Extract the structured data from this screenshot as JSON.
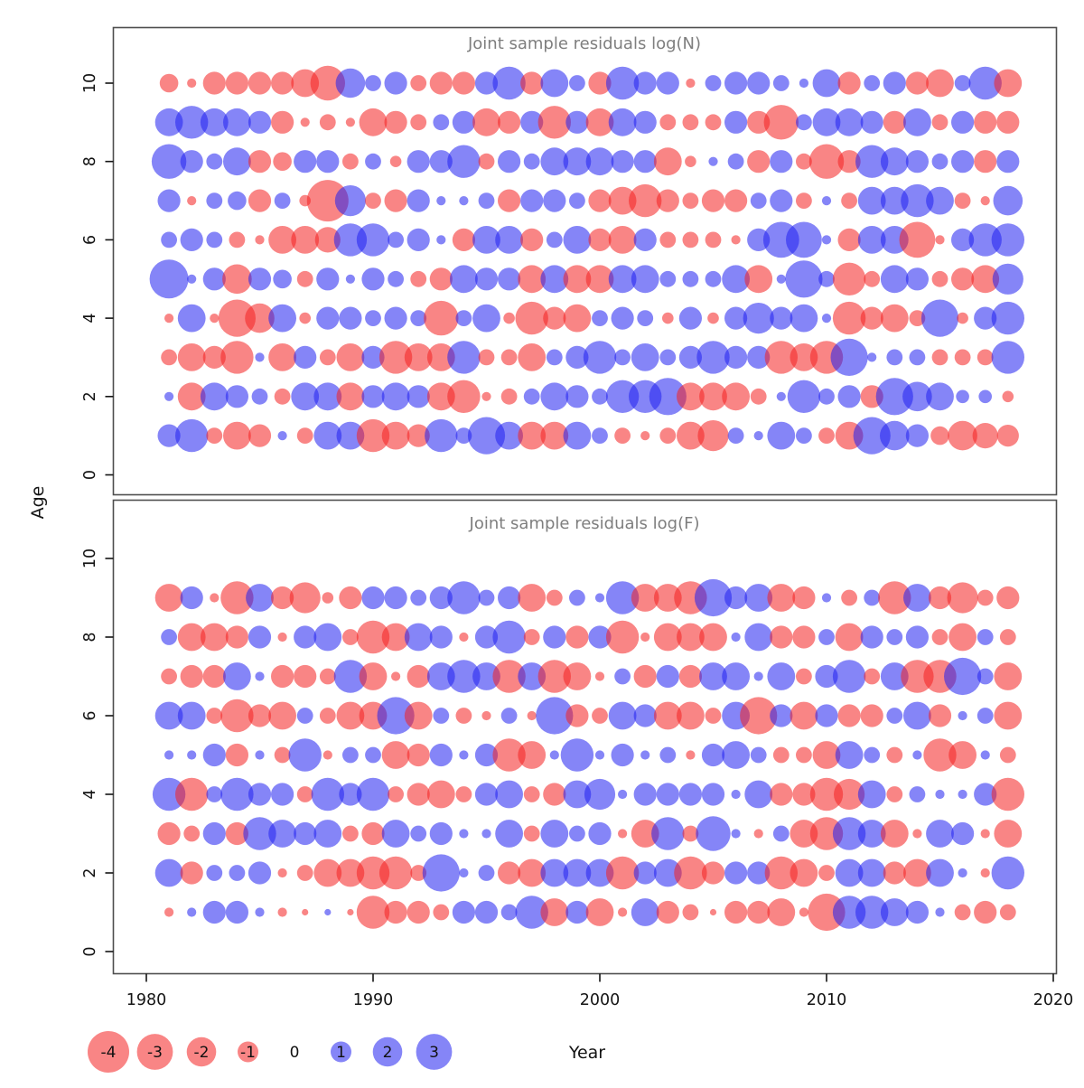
{
  "figure": {
    "y_axis_label": "Age",
    "x_axis_label": "Year",
    "x_ticks": [
      1980,
      1990,
      2000,
      2010,
      2020
    ],
    "y_ticks": [
      0,
      2,
      4,
      6,
      8,
      10
    ],
    "negative_color_base": "#f42020",
    "positive_color_base": "#2020f0",
    "negative_color_apparent": "#f97d7d",
    "positive_color_apparent": "#7a7af7",
    "bubble_opacity": 0.55,
    "border_color": "#4f4f4f",
    "title_color": "#7e7e7e"
  },
  "legend": {
    "values": [
      -4,
      -3,
      -2,
      -1,
      0,
      1,
      2,
      3
    ],
    "labels": [
      "-4",
      "-3",
      "-2",
      "-1",
      "0",
      "1",
      "2",
      "3"
    ]
  },
  "chart_data": [
    {
      "type": "bubble",
      "title": "Joint sample residuals log(N)",
      "xlabel": "Year",
      "ylabel": "Age",
      "x_range": [
        1977.5,
        2020.6
      ],
      "y_range": [
        0,
        11
      ],
      "grid": false,
      "legend_position": "bottom",
      "years_start": 1981,
      "years_end": 2018,
      "ages": [
        10,
        9,
        8,
        7,
        6,
        5,
        4,
        3,
        2,
        1
      ],
      "series": {
        "10": [
          -0.8,
          -0.2,
          -1.2,
          -1.2,
          -1.2,
          -1.2,
          -1.8,
          -2.8,
          2.0,
          0.6,
          1.2,
          -0.6,
          -1.2,
          -1.2,
          1.2,
          2.5,
          -1.2,
          1.8,
          0.6,
          -1.2,
          2.5,
          1.2,
          1.2,
          -0.2,
          0.6,
          1.2,
          1.2,
          0.6,
          0.2,
          1.8,
          -1.2,
          0.6,
          1.2,
          -1.2,
          -1.8,
          0.6,
          2.5,
          -1.8
        ],
        "9": [
          1.8,
          2.5,
          1.8,
          1.8,
          1.2,
          -1.2,
          -0.2,
          -0.6,
          -0.2,
          -1.8,
          -1.2,
          -0.6,
          0.6,
          1.2,
          -1.8,
          -1.2,
          1.2,
          -2.5,
          1.2,
          -1.8,
          1.8,
          1.2,
          -0.6,
          -0.6,
          -0.6,
          1.2,
          -1.2,
          -2.8,
          0.6,
          1.8,
          1.8,
          1.2,
          -1.2,
          1.8,
          -0.6,
          1.2,
          -1.2,
          -1.2
        ],
        "8": [
          2.8,
          1.2,
          0.6,
          1.8,
          -1.2,
          -0.8,
          1.2,
          1.2,
          -0.6,
          0.6,
          -0.3,
          1.2,
          1.2,
          2.5,
          -0.6,
          1.2,
          0.6,
          1.8,
          1.8,
          1.8,
          1.2,
          1.2,
          -1.8,
          -0.3,
          0.2,
          0.6,
          -1.2,
          1.2,
          -0.6,
          -2.8,
          -1.2,
          2.5,
          1.8,
          1.2,
          0.6,
          1.2,
          -1.2,
          1.2
        ],
        "7": [
          1.2,
          -0.2,
          0.6,
          0.8,
          -1.2,
          0.6,
          -0.3,
          -4.0,
          2.2,
          -0.6,
          -1.2,
          1.2,
          0.2,
          0.2,
          0.6,
          -1.2,
          1.2,
          1.2,
          0.6,
          -1.2,
          -1.8,
          -2.5,
          -1.2,
          -0.6,
          -1.2,
          -1.2,
          0.6,
          1.2,
          -0.6,
          0.2,
          -0.6,
          1.8,
          1.8,
          2.5,
          1.8,
          -0.6,
          -0.2,
          2.0
        ],
        "6": [
          0.6,
          1.2,
          0.6,
          -0.6,
          -0.2,
          -1.8,
          -1.8,
          -1.5,
          2.5,
          2.5,
          0.6,
          1.2,
          0.2,
          -1.2,
          1.8,
          1.8,
          -1.2,
          0.6,
          1.8,
          -1.2,
          -1.8,
          1.2,
          -0.6,
          -0.6,
          -0.6,
          -0.2,
          1.2,
          3.0,
          3.0,
          0.2,
          -1.2,
          1.8,
          1.8,
          -3.0,
          -0.2,
          1.2,
          2.5,
          2.5
        ],
        "5": [
          3.5,
          0.2,
          1.2,
          -2.0,
          1.2,
          0.8,
          -0.6,
          1.2,
          0.2,
          1.2,
          0.6,
          -0.6,
          -1.2,
          1.8,
          1.2,
          1.2,
          -1.8,
          1.8,
          -1.8,
          -1.8,
          1.8,
          1.8,
          0.6,
          0.6,
          0.6,
          1.8,
          -1.8,
          0.2,
          3.2,
          0.6,
          -2.5,
          -0.6,
          1.8,
          1.2,
          -0.6,
          -1.2,
          -1.8,
          2.2
        ],
        "4": [
          -0.2,
          1.8,
          -0.2,
          -3.2,
          -2.0,
          1.8,
          -0.3,
          1.2,
          1.2,
          0.6,
          1.2,
          0.6,
          -2.8,
          0.6,
          1.8,
          -0.3,
          -2.5,
          -1.2,
          -1.8,
          0.6,
          1.2,
          0.6,
          -0.3,
          1.2,
          -0.3,
          1.2,
          2.2,
          1.2,
          1.8,
          0.2,
          -2.5,
          -1.2,
          -1.8,
          -0.6,
          3.2,
          -0.3,
          1.2,
          2.5
        ],
        "3": [
          -0.6,
          -1.8,
          -1.2,
          -2.5,
          0.2,
          -1.8,
          1.2,
          -0.6,
          -1.8,
          1.2,
          -2.5,
          -1.8,
          -1.8,
          2.5,
          -0.6,
          -0.6,
          -1.8,
          0.6,
          1.2,
          2.5,
          0.6,
          1.8,
          0.6,
          1.2,
          2.5,
          1.2,
          1.2,
          -2.5,
          -1.8,
          -2.5,
          3.2,
          0.2,
          0.6,
          0.6,
          -0.6,
          -0.6,
          -0.6,
          2.5
        ],
        "2": [
          0.2,
          -1.8,
          1.8,
          1.2,
          0.6,
          -0.6,
          1.8,
          1.8,
          -1.8,
          1.2,
          1.8,
          1.2,
          -1.8,
          -2.5,
          -0.2,
          -0.6,
          0.6,
          1.8,
          1.2,
          0.6,
          2.5,
          2.5,
          3.2,
          -1.8,
          -1.8,
          -1.8,
          -0.6,
          0.2,
          2.5,
          0.6,
          1.2,
          -1.2,
          3.2,
          2.0,
          1.8,
          0.4,
          0.4,
          -0.3
        ],
        "1": [
          1.2,
          2.5,
          -0.6,
          -1.8,
          -1.2,
          0.2,
          -0.6,
          1.8,
          1.8,
          -2.5,
          -1.8,
          -1.2,
          2.5,
          0.6,
          3.2,
          1.8,
          -1.8,
          -1.8,
          1.8,
          0.6,
          -0.6,
          -0.2,
          -0.6,
          -1.8,
          -2.2,
          0.6,
          0.2,
          1.8,
          0.6,
          -0.6,
          -1.8,
          3.2,
          2.0,
          1.2,
          -0.8,
          -2.0,
          -1.5,
          -1.1
        ]
      }
    },
    {
      "type": "bubble",
      "title": "Joint sample residuals log(F)",
      "xlabel": "Year",
      "ylabel": "Age",
      "x_range": [
        1977.5,
        2020.6
      ],
      "y_range": [
        0,
        11
      ],
      "grid": false,
      "legend_position": "bottom",
      "years_start": 1981,
      "years_end": 2018,
      "ages": [
        9,
        8,
        7,
        6,
        5,
        4,
        3,
        2,
        1
      ],
      "series": {
        "9": [
          -1.8,
          1.2,
          -0.2,
          -2.5,
          1.8,
          -1.2,
          -2.2,
          -0.3,
          -1.2,
          1.2,
          1.2,
          0.6,
          1.2,
          2.5,
          0.6,
          1.2,
          -1.8,
          -0.6,
          0.6,
          0.2,
          2.5,
          -1.8,
          -1.8,
          -2.5,
          3.2,
          1.2,
          1.8,
          -1.8,
          -1.2,
          0.2,
          -0.6,
          0.6,
          -2.5,
          1.8,
          -1.2,
          -2.2,
          -0.6,
          -1.2
        ],
        "8": [
          0.6,
          -1.8,
          -1.8,
          -1.2,
          1.2,
          -0.2,
          1.2,
          1.8,
          -0.6,
          -2.5,
          -1.8,
          1.8,
          1.2,
          -0.2,
          1.2,
          2.5,
          -0.6,
          1.2,
          -1.2,
          1.2,
          -2.5,
          -0.2,
          -1.8,
          -1.8,
          -1.8,
          0.2,
          1.8,
          -1.2,
          -1.2,
          0.6,
          -1.8,
          1.2,
          0.6,
          1.2,
          -0.6,
          -1.8,
          0.6,
          -0.6
        ],
        "7": [
          -0.6,
          -1.2,
          -1.2,
          1.8,
          0.2,
          -1.2,
          -1.2,
          -0.6,
          2.5,
          -1.8,
          -0.2,
          -1.2,
          1.8,
          2.5,
          1.8,
          -2.5,
          1.8,
          -2.5,
          -1.8,
          -0.2,
          0.6,
          -1.2,
          1.2,
          -1.2,
          1.8,
          1.8,
          0.2,
          1.8,
          -0.6,
          1.2,
          2.5,
          -0.6,
          1.8,
          -2.5,
          -2.5,
          3.2,
          0.6,
          -1.8
        ],
        "6": [
          1.8,
          1.8,
          -0.6,
          -2.5,
          -1.2,
          -1.8,
          0.6,
          -0.6,
          -1.8,
          -1.8,
          3.2,
          -1.8,
          0.6,
          -0.6,
          -0.2,
          0.6,
          -0.2,
          3.2,
          -1.2,
          -0.6,
          1.8,
          1.2,
          -1.8,
          -1.8,
          -0.6,
          1.8,
          -3.2,
          1.2,
          -1.8,
          1.2,
          -1.2,
          -1.2,
          0.6,
          1.8,
          -1.2,
          0.2,
          0.6,
          -1.8
        ],
        "5": [
          0.2,
          0.2,
          1.2,
          -1.2,
          0.2,
          -0.6,
          2.5,
          -0.2,
          0.6,
          0.6,
          -1.8,
          -1.2,
          1.2,
          0.2,
          1.2,
          -2.5,
          -1.8,
          0.2,
          2.5,
          0.2,
          1.2,
          0.2,
          0.6,
          -0.2,
          1.2,
          1.8,
          0.6,
          -0.6,
          -0.6,
          -1.8,
          1.8,
          0.6,
          -0.6,
          0.2,
          -2.5,
          -1.8,
          0.2,
          -0.6
        ],
        "4": [
          2.5,
          -2.5,
          0.6,
          2.5,
          1.2,
          1.2,
          -0.6,
          2.5,
          1.2,
          2.5,
          -0.6,
          -1.2,
          -1.8,
          -0.6,
          1.2,
          1.8,
          -0.6,
          -1.2,
          1.8,
          2.2,
          0.2,
          1.2,
          1.2,
          1.2,
          1.2,
          0.2,
          1.8,
          -1.2,
          -1.2,
          -2.5,
          -2.2,
          1.8,
          -0.6,
          0.6,
          0.2,
          0.2,
          1.2,
          -2.5
        ],
        "3": [
          -1.2,
          -0.6,
          1.2,
          -1.2,
          2.5,
          1.8,
          1.2,
          1.8,
          -0.6,
          -1.2,
          1.8,
          0.6,
          1.2,
          0.2,
          0.2,
          1.8,
          -0.6,
          1.8,
          0.6,
          1.2,
          -0.2,
          -1.8,
          2.5,
          -0.6,
          2.8,
          0.2,
          -0.2,
          0.6,
          -1.8,
          -2.5,
          2.5,
          1.8,
          -1.8,
          -0.2,
          1.8,
          1.2,
          -0.2,
          -1.8
        ],
        "2": [
          1.8,
          -1.2,
          0.6,
          0.6,
          1.2,
          -0.2,
          -0.6,
          -1.8,
          -1.8,
          -2.5,
          -2.5,
          -0.6,
          3.2,
          0.2,
          0.6,
          -1.2,
          -1.8,
          1.8,
          1.8,
          1.8,
          -2.5,
          1.2,
          1.8,
          -2.5,
          -1.2,
          1.2,
          1.2,
          -2.5,
          -1.8,
          -0.6,
          1.8,
          1.8,
          -1.2,
          -1.8,
          1.8,
          0.2,
          -0.2,
          2.5
        ],
        "1": [
          -0.2,
          0.2,
          1.2,
          1.2,
          0.2,
          -0.2,
          -0.1,
          0.1,
          -0.1,
          -2.5,
          -1.2,
          -1.2,
          -0.6,
          1.2,
          1.2,
          0.6,
          2.5,
          -1.8,
          1.2,
          -1.8,
          -0.2,
          1.8,
          -1.2,
          -0.6,
          -0.1,
          -1.2,
          -1.2,
          -1.8,
          -0.2,
          -3.2,
          2.5,
          2.5,
          1.8,
          1.2,
          0.2,
          -0.6,
          -1.2,
          -0.6
        ]
      }
    }
  ]
}
